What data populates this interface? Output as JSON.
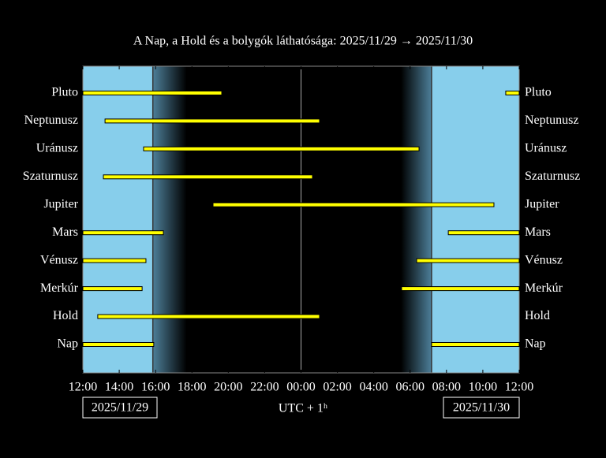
{
  "chart_data": {
    "type": "timeline",
    "title": "A Nap, a Hold és a bolygók láthatósága: 2025/11/29 → 2025/11/30",
    "xlabel": "UTC + 1ʰ",
    "start_date": "2025/11/29",
    "end_date": "2025/11/30",
    "xlim": [
      12,
      36
    ],
    "xticks": [
      {
        "value": 12,
        "label": "12:00"
      },
      {
        "value": 14,
        "label": "14:00"
      },
      {
        "value": 16,
        "label": "16:00"
      },
      {
        "value": 18,
        "label": "18:00"
      },
      {
        "value": 20,
        "label": "20:00"
      },
      {
        "value": 22,
        "label": "22:00"
      },
      {
        "value": 24,
        "label": "00:00"
      },
      {
        "value": 26,
        "label": "02:00"
      },
      {
        "value": 28,
        "label": "04:00"
      },
      {
        "value": 30,
        "label": "06:00"
      },
      {
        "value": 32,
        "label": "08:00"
      },
      {
        "value": 34,
        "label": "10:00"
      },
      {
        "value": 36,
        "label": "12:00"
      }
    ],
    "midnight": 24,
    "day_color": "#87ceeb",
    "bar_color": "#ffff00",
    "daylight": [
      [
        12,
        15.85
      ],
      [
        31.18,
        36
      ]
    ],
    "twilight": [
      [
        15.85,
        17.7
      ],
      [
        29.5,
        31.18
      ]
    ],
    "series": [
      {
        "name": "Pluto",
        "intervals": [
          [
            12,
            19.64
          ],
          [
            35.26,
            36
          ]
        ]
      },
      {
        "name": "Neptunusz",
        "intervals": [
          [
            13.22,
            25.02
          ]
        ]
      },
      {
        "name": "Uránusz",
        "intervals": [
          [
            15.34,
            30.49
          ]
        ]
      },
      {
        "name": "Szaturnusz",
        "intervals": [
          [
            13.13,
            24.63
          ]
        ]
      },
      {
        "name": "Jupiter",
        "intervals": [
          [
            19.16,
            34.61
          ]
        ]
      },
      {
        "name": "Mars",
        "intervals": [
          [
            12,
            16.43
          ],
          [
            32.1,
            36
          ]
        ]
      },
      {
        "name": "Vénusz",
        "intervals": [
          [
            12,
            15.47
          ],
          [
            30.36,
            36
          ]
        ]
      },
      {
        "name": "Merkúr",
        "intervals": [
          [
            12,
            15.26
          ],
          [
            29.53,
            36
          ]
        ]
      },
      {
        "name": "Hold",
        "intervals": [
          [
            12.82,
            25.02
          ]
        ]
      },
      {
        "name": "Nap",
        "intervals": [
          [
            12,
            15.9
          ],
          [
            31.18,
            36
          ]
        ]
      }
    ]
  }
}
